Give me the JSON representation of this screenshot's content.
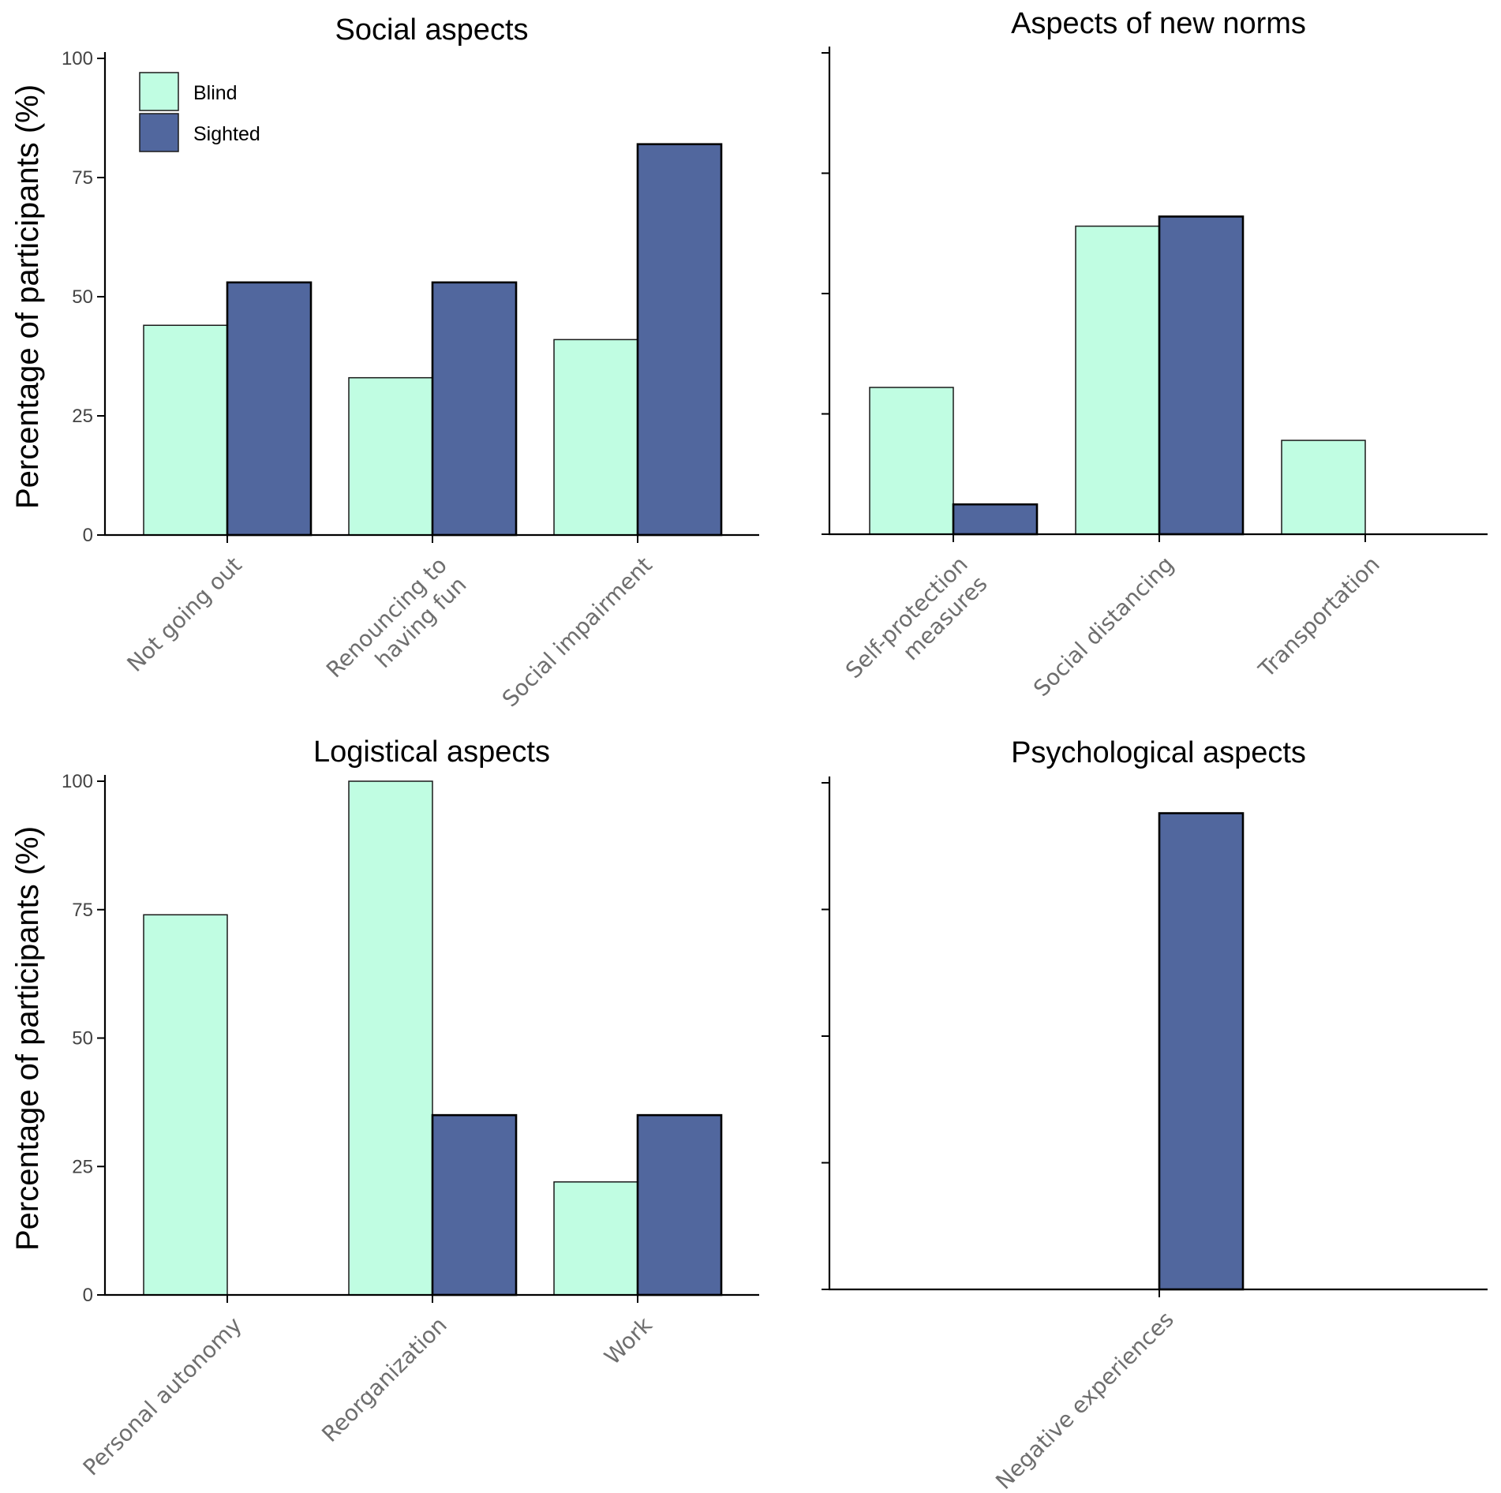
{
  "chart_data": [
    {
      "type": "bar",
      "title": "Social aspects",
      "ylabel": "Percentage of participants (%)",
      "xlabel": "",
      "ylim": [
        0,
        100
      ],
      "yticks": [
        "0",
        "25",
        "50",
        "75",
        "100"
      ],
      "categories": [
        [
          "Not going out"
        ],
        [
          "Renouncing to",
          "having fun"
        ],
        [
          "Social impairment"
        ]
      ],
      "series": [
        {
          "name": "Blind",
          "values": [
            44,
            33,
            41
          ]
        },
        {
          "name": "Sighted",
          "values": [
            53,
            53,
            82
          ]
        }
      ]
    },
    {
      "type": "bar",
      "title": "Aspects of new norms",
      "ylabel": "",
      "xlabel": "",
      "ylim": [
        0,
        100
      ],
      "yticks": [],
      "categories": [
        [
          "Self-protection",
          "measures"
        ],
        [
          "Social distancing"
        ],
        [
          "Transportation"
        ]
      ],
      "series": [
        {
          "name": "Blind",
          "values": [
            30.5,
            64,
            19.5
          ]
        },
        {
          "name": "Sighted",
          "values": [
            6.2,
            66,
            0
          ]
        }
      ]
    },
    {
      "type": "bar",
      "title": "Logistical aspects",
      "ylabel": "Percentage of participants (%)",
      "xlabel": "",
      "ylim": [
        0,
        100
      ],
      "yticks": [
        "0",
        "25",
        "50",
        "75",
        "100"
      ],
      "categories": [
        [
          "Personal autonomy"
        ],
        [
          "Reorganization"
        ],
        [
          "Work"
        ]
      ],
      "series": [
        {
          "name": "Blind",
          "values": [
            74,
            100,
            22
          ]
        },
        {
          "name": "Sighted",
          "values": [
            0,
            35,
            35
          ]
        }
      ]
    },
    {
      "type": "bar",
      "title": "Psychological aspects",
      "ylabel": "",
      "xlabel": "",
      "ylim": [
        0,
        100
      ],
      "yticks": [],
      "categories": [
        [
          "Negative experiences"
        ]
      ],
      "series": [
        {
          "name": "Blind",
          "values": [
            0
          ]
        },
        {
          "name": "Sighted",
          "values": [
            94
          ]
        }
      ]
    }
  ],
  "legend": {
    "position": "top-left",
    "entries": [
      "Blind",
      "Sighted"
    ]
  },
  "colors": {
    "blind": "#c0fde2",
    "sighted": "#51679e",
    "axis": "#000000"
  }
}
